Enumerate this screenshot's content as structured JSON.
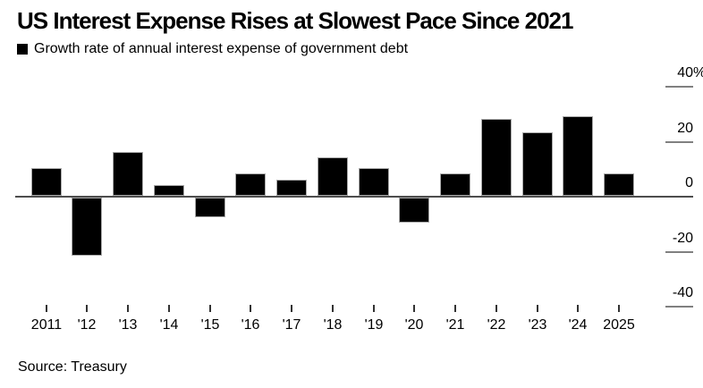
{
  "page": {
    "title": "US Interest Expense Rises at Slowest Pace Since 2021",
    "legend_label": "Growth rate of annual interest expense of government debt",
    "source_note": "Source: Treasury"
  },
  "colors": {
    "bar": "#000000",
    "axis_line": "#4d4d4d",
    "text": "#000000",
    "background": "#ffffff"
  },
  "chart_data": {
    "type": "bar",
    "title": "US Interest Expense Rises at Slowest Pace Since 2021",
    "legend": [
      "Growth rate of annual interest expense of government debt"
    ],
    "source": "Source: Treasury",
    "categories": [
      "2011",
      "'12",
      "'13",
      "'14",
      "'15",
      "'16",
      "'17",
      "'18",
      "'19",
      "'20",
      "'21",
      "'22",
      "'23",
      "'24",
      "2025"
    ],
    "values": [
      10,
      -21,
      16,
      4,
      -7,
      8,
      6,
      14,
      10,
      -9,
      8,
      28,
      23,
      29,
      8
    ],
    "unit": "%",
    "xlabel": "",
    "ylabel": "",
    "ylim": [
      -45,
      42
    ],
    "y_ticks": [
      40,
      20,
      0,
      -20,
      -40
    ],
    "y_tick_labels": [
      "40%",
      "20",
      "0",
      "-20",
      "-40"
    ],
    "axis_side": "right",
    "grid": false,
    "legend_position": "top-left"
  }
}
